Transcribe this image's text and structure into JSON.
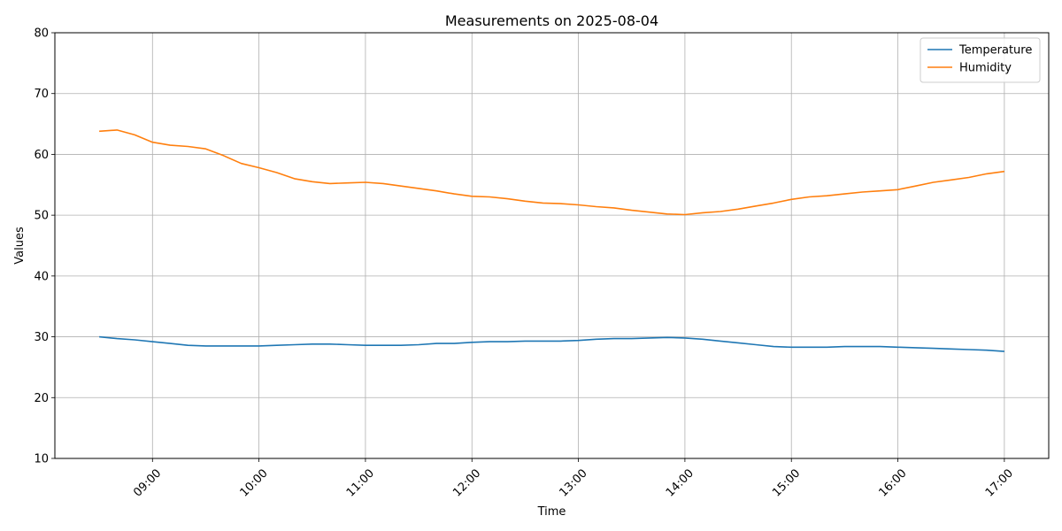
{
  "chart_data": {
    "type": "line",
    "title": "Measurements on 2025-08-04",
    "xlabel": "Time",
    "ylabel": "Values",
    "ylim": [
      10,
      80
    ],
    "xlim": [
      "08:05",
      "17:25"
    ],
    "grid": true,
    "legend_position": "top-right",
    "x_ticks": [
      "09:00",
      "10:00",
      "11:00",
      "12:00",
      "13:00",
      "14:00",
      "15:00",
      "16:00",
      "17:00"
    ],
    "y_ticks": [
      10,
      20,
      30,
      40,
      50,
      60,
      70,
      80
    ],
    "x": [
      "08:30",
      "08:40",
      "08:50",
      "09:00",
      "09:10",
      "09:20",
      "09:30",
      "09:40",
      "09:50",
      "10:00",
      "10:10",
      "10:20",
      "10:30",
      "10:40",
      "10:50",
      "11:00",
      "11:10",
      "11:20",
      "11:30",
      "11:40",
      "11:50",
      "12:00",
      "12:10",
      "12:20",
      "12:30",
      "12:40",
      "12:50",
      "13:00",
      "13:10",
      "13:20",
      "13:30",
      "13:40",
      "13:50",
      "14:00",
      "14:10",
      "14:20",
      "14:30",
      "14:40",
      "14:50",
      "15:00",
      "15:10",
      "15:20",
      "15:30",
      "15:40",
      "15:50",
      "16:00",
      "16:10",
      "16:20",
      "16:30",
      "16:40",
      "16:50",
      "17:00"
    ],
    "series": [
      {
        "name": "Temperature",
        "color": "#1f77b4",
        "values": [
          30.0,
          29.7,
          29.5,
          29.2,
          28.9,
          28.6,
          28.5,
          28.5,
          28.5,
          28.5,
          28.6,
          28.7,
          28.8,
          28.8,
          28.7,
          28.6,
          28.6,
          28.6,
          28.7,
          28.9,
          28.9,
          29.1,
          29.2,
          29.2,
          29.3,
          29.3,
          29.3,
          29.4,
          29.6,
          29.7,
          29.7,
          29.8,
          29.9,
          29.8,
          29.6,
          29.3,
          29.0,
          28.7,
          28.4,
          28.3,
          28.3,
          28.3,
          28.4,
          28.4,
          28.4,
          28.3,
          28.2,
          28.1,
          28.0,
          27.9,
          27.8,
          27.6
        ]
      },
      {
        "name": "Humidity",
        "color": "#ff7f0e",
        "values": [
          63.8,
          64.0,
          63.2,
          62.0,
          61.5,
          61.3,
          60.9,
          59.8,
          58.5,
          57.8,
          57.0,
          56.0,
          55.5,
          55.2,
          55.3,
          55.4,
          55.2,
          54.8,
          54.4,
          54.0,
          53.5,
          53.1,
          53.0,
          52.7,
          52.3,
          52.0,
          51.9,
          51.7,
          51.4,
          51.2,
          50.8,
          50.5,
          50.2,
          50.1,
          50.4,
          50.6,
          51.0,
          51.5,
          52.0,
          52.6,
          53.0,
          53.2,
          53.5,
          53.8,
          54.0,
          54.2,
          54.8,
          55.4,
          55.8,
          56.2,
          56.8,
          57.2
        ]
      }
    ]
  }
}
